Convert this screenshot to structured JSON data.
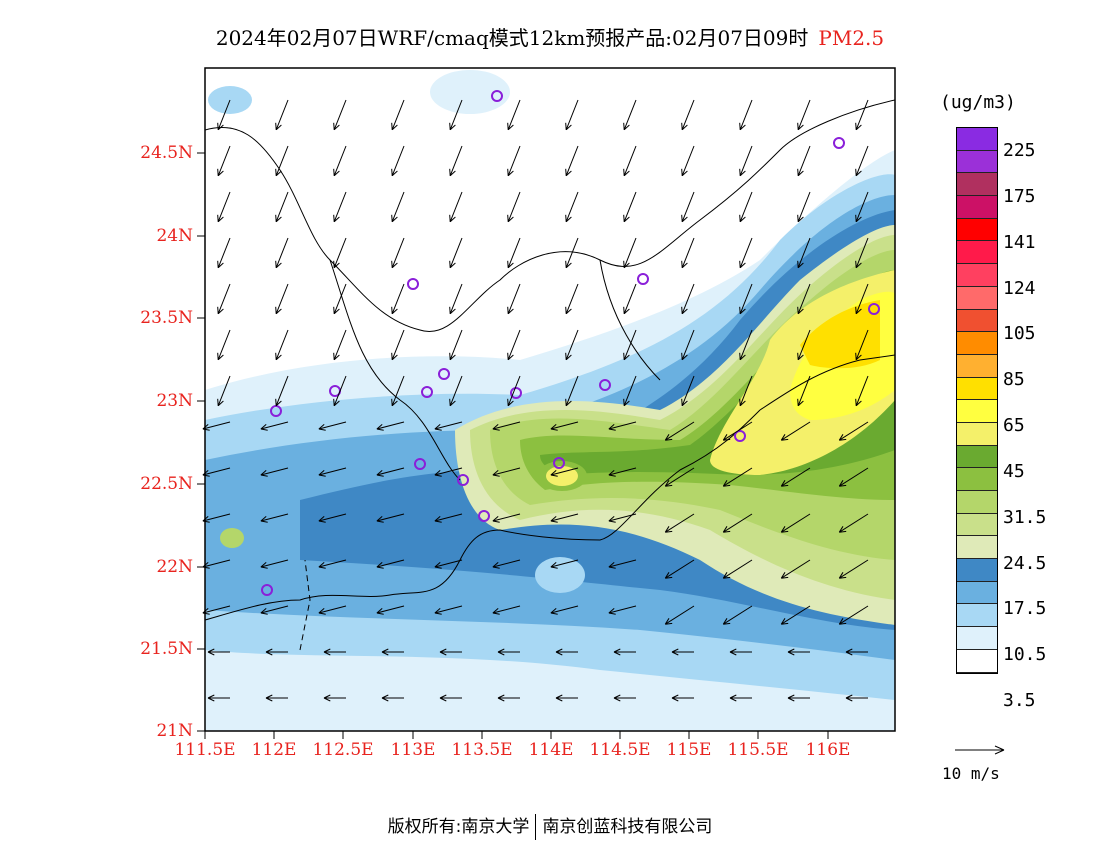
{
  "title": {
    "main": "2024年02月07日WRF/cmaq模式12km预报产品:02月07日09时",
    "pollutant": "PM2.5"
  },
  "latitude_labels": [
    "24.5N",
    "24N",
    "23.5N",
    "23N",
    "22.5N",
    "22N",
    "21.5N",
    "21N"
  ],
  "longitude_labels": [
    "111.5E",
    "112E",
    "112.5E",
    "113E",
    "113.5E",
    "114E",
    "114.5E",
    "115E",
    "115.5E",
    "116E"
  ],
  "legend": {
    "unit": "(ug/m3)",
    "colors": [
      "#8a2be2",
      "#9b30d8",
      "#b0305f",
      "#cc1166",
      "#ff0000",
      "#ff1a4a",
      "#ff4060",
      "#ff6a6a",
      "#f05030",
      "#ff8c00",
      "#ffb030",
      "#ffe000",
      "#ffff40",
      "#f4f06a",
      "#6aaa30",
      "#8cc040",
      "#b4d66a",
      "#c9e08a",
      "#dfeab8",
      "#3f88c5",
      "#6ab0e0",
      "#a8d8f4",
      "#dff1fb",
      "#ffffff"
    ],
    "labels": [
      "225",
      "175",
      "141",
      "124",
      "105",
      "85",
      "65",
      "45",
      "31.5",
      "24.5",
      "17.5",
      "10.5",
      "3.5"
    ]
  },
  "wind_reference": "10 m/s",
  "footer": {
    "left": "版权所有:南京大学",
    "right": "南京创蓝科技有限公司"
  }
}
